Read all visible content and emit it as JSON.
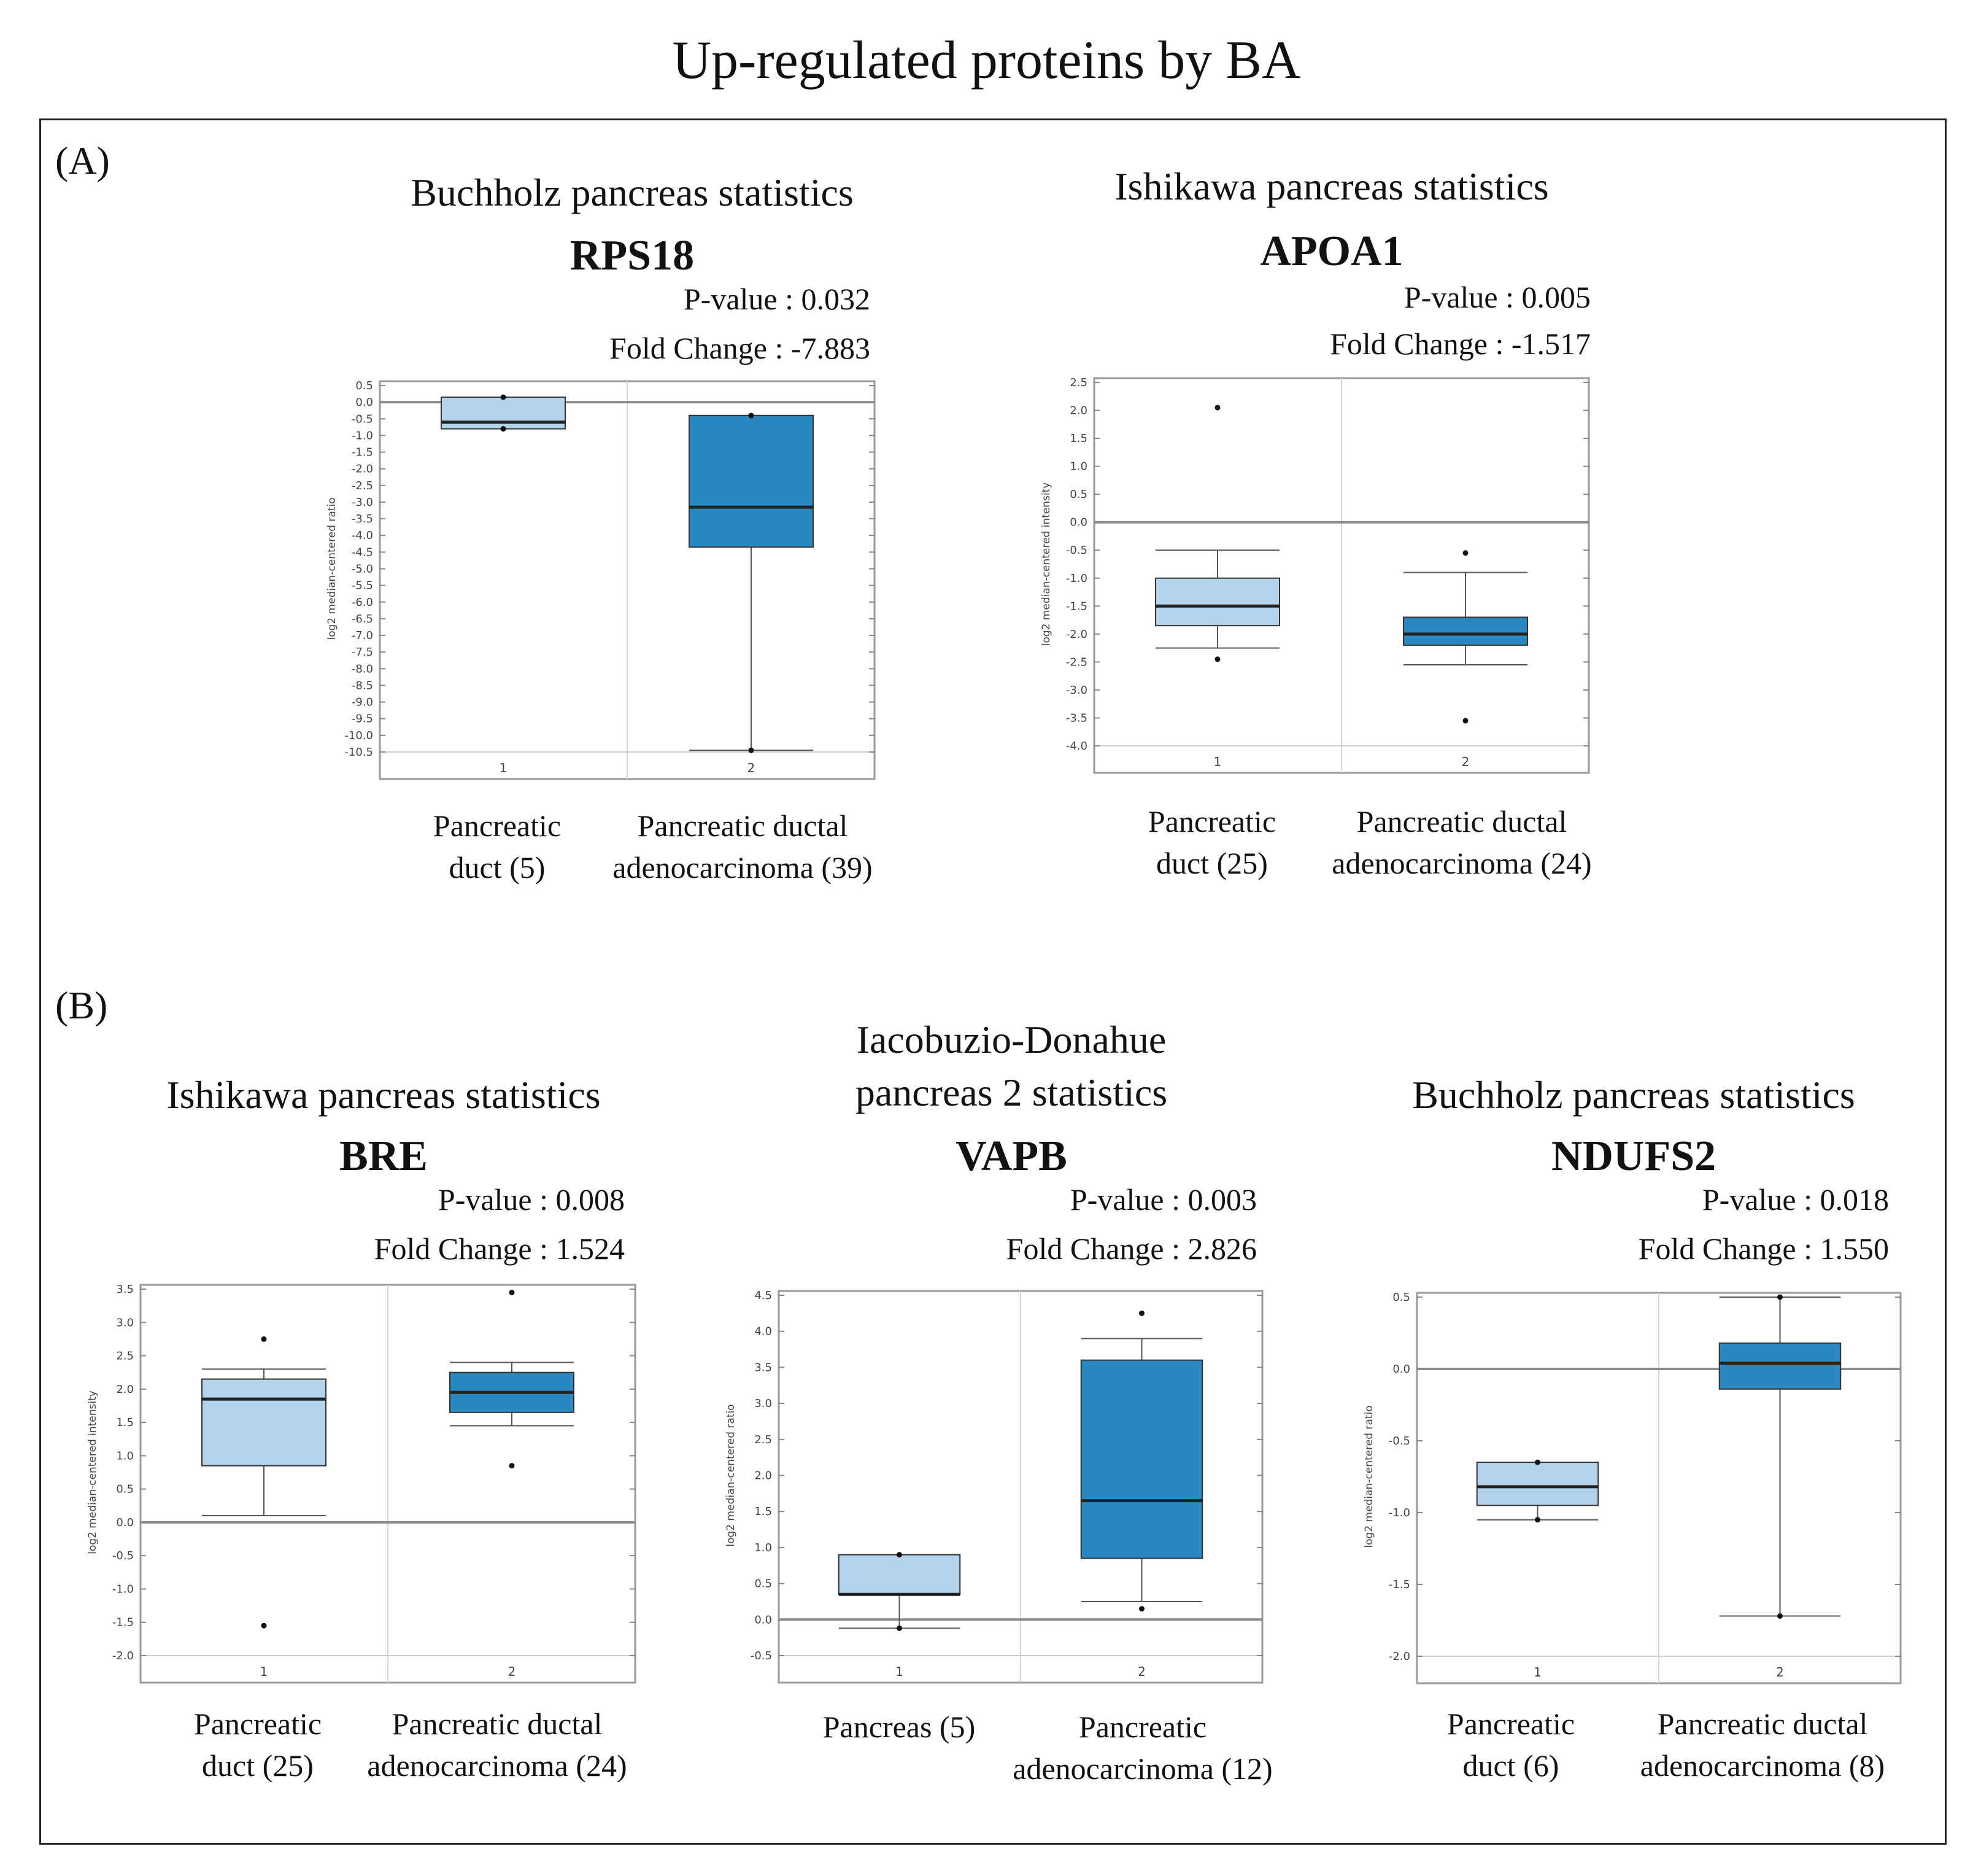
{
  "figure": {
    "title": "Up-regulated proteins by BA"
  },
  "panels": [
    {
      "label": "(A)"
    },
    {
      "label": "(B)"
    }
  ],
  "chart_data": [
    {
      "type": "box",
      "panel": "A",
      "dataset": "Buchholz pancreas statistics",
      "gene": "RPS18",
      "pvalue": "P-value : 0.032",
      "fold_change": "Fold Change : -7.883",
      "ylabel": "log2 median-centered ratio",
      "ylim": [
        -10.5,
        0.5
      ],
      "yticks": [
        0.5,
        0,
        -0.5,
        -1,
        -1.5,
        -2,
        -2.5,
        -3,
        -3.5,
        -4,
        -4.5,
        -5,
        -5.5,
        -6,
        -6.5,
        -7,
        -7.5,
        -8,
        -8.5,
        -9,
        -9.5,
        -10,
        -10.5
      ],
      "tick_labels": [
        "1",
        "2"
      ],
      "categories": [
        "Pancreatic duct (5)",
        "Pancreatic ductal adenocarcinoma (39)"
      ],
      "category_lines": [
        [
          "Pancreatic",
          "duct (5)"
        ],
        [
          "Pancreatic ductal",
          "adenocarcinoma (39)"
        ]
      ],
      "colors": [
        "#b3d3ea",
        "#2b87c0"
      ],
      "boxes": [
        {
          "q1": -0.8,
          "median": -0.6,
          "q3": 0.15,
          "whisker_low": -0.8,
          "whisker_high": 0.15,
          "outliers": [
            0.15,
            -0.8
          ]
        },
        {
          "q1": -4.35,
          "median": -3.15,
          "q3": -0.4,
          "whisker_low": -10.45,
          "whisker_high": -0.4,
          "outliers": [
            -0.4,
            -10.45
          ]
        }
      ]
    },
    {
      "type": "box",
      "panel": "A",
      "dataset": "Ishikawa pancreas statistics",
      "gene": "APOA1",
      "pvalue": "P-value : 0.005",
      "fold_change": "Fold Change : -1.517",
      "ylabel": "log2 median-centered intensity",
      "ylim": [
        -4.0,
        2.5
      ],
      "yticks": [
        2.5,
        2,
        1.5,
        1,
        0.5,
        0,
        -0.5,
        -1,
        -1.5,
        -2,
        -2.5,
        -3,
        -3.5,
        -4
      ],
      "tick_labels": [
        "1",
        "2"
      ],
      "categories": [
        "Pancreatic duct (25)",
        "Pancreatic ductal adenocarcinoma (24)"
      ],
      "category_lines": [
        [
          "Pancreatic",
          "duct (25)"
        ],
        [
          "Pancreatic ductal",
          "adenocarcinoma (24)"
        ]
      ],
      "colors": [
        "#b3d3ea",
        "#2b87c0"
      ],
      "boxes": [
        {
          "q1": -1.85,
          "median": -1.5,
          "q3": -1.0,
          "whisker_low": -2.25,
          "whisker_high": -0.5,
          "outliers": [
            2.05,
            -2.45
          ]
        },
        {
          "q1": -2.2,
          "median": -2.0,
          "q3": -1.7,
          "whisker_low": -2.55,
          "whisker_high": -0.9,
          "outliers": [
            -0.55,
            -3.55
          ]
        }
      ]
    },
    {
      "type": "box",
      "panel": "B",
      "dataset": "Ishikawa pancreas statistics",
      "gene": "BRE",
      "pvalue": "P-value : 0.008",
      "fold_change": "Fold Change : 1.524",
      "ylabel": "log2 median-centered intensity",
      "ylim": [
        -2.0,
        3.5
      ],
      "yticks": [
        3.5,
        3,
        2.5,
        2,
        1.5,
        1,
        0.5,
        0,
        -0.5,
        -1,
        -1.5,
        -2
      ],
      "tick_labels": [
        "1",
        "2"
      ],
      "categories": [
        "Pancreatic duct (25)",
        "Pancreatic ductal adenocarcinoma (24)"
      ],
      "category_lines": [
        [
          "Pancreatic",
          "duct (25)"
        ],
        [
          "Pancreatic ductal",
          "adenocarcinoma (24)"
        ]
      ],
      "colors": [
        "#b3d3ea",
        "#2b87c0"
      ],
      "boxes": [
        {
          "q1": 0.85,
          "median": 1.85,
          "q3": 2.15,
          "whisker_low": 0.1,
          "whisker_high": 2.3,
          "outliers": [
            2.75,
            -1.55
          ]
        },
        {
          "q1": 1.65,
          "median": 1.95,
          "q3": 2.25,
          "whisker_low": 1.45,
          "whisker_high": 2.4,
          "outliers": [
            3.45,
            0.85
          ]
        }
      ]
    },
    {
      "type": "box",
      "panel": "B",
      "dataset": "Iacobuzio-Donahue pancreas 2 statistics",
      "dataset_lines": [
        "Iacobuzio-Donahue",
        "pancreas 2 statistics"
      ],
      "gene": "VAPB",
      "pvalue": "P-value : 0.003",
      "fold_change": "Fold Change : 2.826",
      "ylabel": "log2 median-centered ratio",
      "ylim": [
        -0.5,
        4.5
      ],
      "yticks": [
        4.5,
        4,
        3.5,
        3,
        2.5,
        2,
        1.5,
        1,
        0.5,
        0,
        -0.5
      ],
      "tick_labels": [
        "1",
        "2"
      ],
      "categories": [
        "Pancreas (5)",
        "Pancreatic adenocarcinoma (12)"
      ],
      "category_lines": [
        [
          "Pancreas (5)"
        ],
        [
          "Pancreatic",
          "adenocarcinoma (12)"
        ]
      ],
      "colors": [
        "#b3d3ea",
        "#2b87c0"
      ],
      "boxes": [
        {
          "q1": 0.35,
          "median": 0.35,
          "q3": 0.9,
          "whisker_low": -0.12,
          "whisker_high": 0.9,
          "outliers": [
            0.9,
            -0.12
          ]
        },
        {
          "q1": 0.85,
          "median": 1.65,
          "q3": 3.6,
          "whisker_low": 0.25,
          "whisker_high": 3.9,
          "outliers": [
            4.25,
            0.15
          ]
        }
      ]
    },
    {
      "type": "box",
      "panel": "B",
      "dataset": "Buchholz pancreas statistics",
      "gene": "NDUFS2",
      "pvalue": "P-value : 0.018",
      "fold_change": "Fold Change : 1.550",
      "ylabel": "log2 median-centered ratio",
      "ylim": [
        -2.0,
        0.5
      ],
      "yticks": [
        0.5,
        0,
        -0.5,
        -1,
        -1.5,
        -2
      ],
      "tick_labels": [
        "1",
        "2"
      ],
      "categories": [
        "Pancreatic duct (6)",
        "Pancreatic ductal adenocarcinoma (8)"
      ],
      "category_lines": [
        [
          "Pancreatic",
          "duct (6)"
        ],
        [
          "Pancreatic ductal",
          "adenocarcinoma (8)"
        ]
      ],
      "colors": [
        "#b3d3ea",
        "#2b87c0"
      ],
      "boxes": [
        {
          "q1": -0.95,
          "median": -0.82,
          "q3": -0.65,
          "whisker_low": -1.05,
          "whisker_high": -0.65,
          "outliers": [
            -0.65,
            -1.05
          ]
        },
        {
          "q1": -0.14,
          "median": 0.04,
          "q3": 0.18,
          "whisker_low": -1.72,
          "whisker_high": 0.5,
          "outliers": [
            0.5,
            -1.72
          ]
        }
      ]
    }
  ]
}
